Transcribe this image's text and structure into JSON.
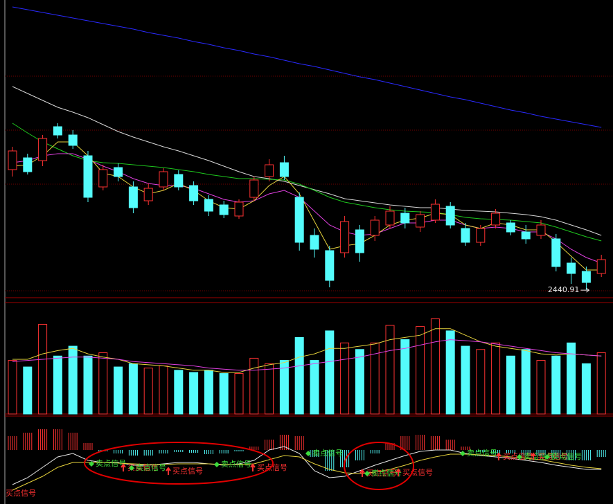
{
  "chart_data": [
    {
      "type": "candlestick",
      "open": [
        2615,
        2632,
        2628,
        2677,
        2665,
        2635,
        2590,
        2618,
        2590,
        2570,
        2590,
        2608,
        2592,
        2572,
        2564,
        2548,
        2575,
        2605,
        2625,
        2575,
        2520,
        2498,
        2495,
        2528,
        2520,
        2535,
        2552,
        2532,
        2542,
        2562,
        2530,
        2510,
        2535,
        2538,
        2525,
        2520,
        2515,
        2480,
        2468,
        2465
      ],
      "high": [
        2648,
        2638,
        2665,
        2682,
        2672,
        2642,
        2622,
        2624,
        2598,
        2595,
        2617,
        2614,
        2598,
        2578,
        2570,
        2572,
        2605,
        2630,
        2635,
        2582,
        2530,
        2505,
        2548,
        2535,
        2548,
        2562,
        2560,
        2555,
        2572,
        2568,
        2538,
        2535,
        2558,
        2542,
        2535,
        2542,
        2522,
        2488,
        2475,
        2492
      ],
      "low": [
        2605,
        2608,
        2620,
        2660,
        2645,
        2568,
        2585,
        2598,
        2552,
        2564,
        2585,
        2585,
        2564,
        2548,
        2545,
        2544,
        2570,
        2598,
        2600,
        2498,
        2488,
        2445,
        2488,
        2482,
        2512,
        2530,
        2530,
        2525,
        2538,
        2530,
        2505,
        2505,
        2530,
        2520,
        2508,
        2515,
        2468,
        2450,
        2440.91,
        2460
      ],
      "close": [
        2642,
        2612,
        2660,
        2665,
        2650,
        2575,
        2615,
        2605,
        2560,
        2588,
        2612,
        2590,
        2570,
        2555,
        2550,
        2568,
        2600,
        2622,
        2605,
        2510,
        2500,
        2455,
        2540,
        2495,
        2542,
        2555,
        2538,
        2550,
        2565,
        2535,
        2510,
        2530,
        2552,
        2525,
        2515,
        2535,
        2475,
        2465,
        2452,
        2485
      ],
      "up_color": "#ff3232",
      "down_color": "#54fcfc",
      "series": [
        {
          "color": "#2a2aff",
          "values": [
            2850,
            2846,
            2842,
            2838,
            2834,
            2830,
            2826,
            2822,
            2818,
            2813,
            2809,
            2805,
            2800,
            2796,
            2791,
            2787,
            2782,
            2778,
            2773,
            2768,
            2764,
            2759,
            2754,
            2749,
            2745,
            2740,
            2735,
            2730,
            2725,
            2720,
            2716,
            2711,
            2706,
            2701,
            2697,
            2692,
            2688,
            2684,
            2680,
            2676
          ]
        },
        {
          "color": "#d8d8d8",
          "values": [
            2735,
            2725,
            2715,
            2705,
            2698,
            2690,
            2680,
            2670,
            2662,
            2655,
            2648,
            2642,
            2635,
            2628,
            2620,
            2612,
            2605,
            2602,
            2598,
            2592,
            2586,
            2580,
            2573,
            2570,
            2567,
            2564,
            2562,
            2560,
            2560,
            2558,
            2556,
            2555,
            2554,
            2552,
            2550,
            2547,
            2542,
            2535,
            2528,
            2520
          ]
        },
        {
          "color": "#1ec81e",
          "values": [
            2682,
            2668,
            2655,
            2645,
            2635,
            2628,
            2625,
            2624,
            2622,
            2620,
            2618,
            2615,
            2612,
            2608,
            2605,
            2602,
            2602,
            2601,
            2600,
            2594,
            2585,
            2575,
            2568,
            2564,
            2560,
            2557,
            2555,
            2554,
            2553,
            2550,
            2546,
            2544,
            2543,
            2542,
            2540,
            2538,
            2532,
            2525,
            2518,
            2512
          ]
        },
        {
          "color": "#e040e0",
          "values": [
            2625,
            2628,
            2635,
            2638,
            2638,
            2630,
            2620,
            2612,
            2602,
            2595,
            2592,
            2592,
            2588,
            2580,
            2572,
            2568,
            2570,
            2580,
            2585,
            2575,
            2555,
            2535,
            2525,
            2520,
            2522,
            2530,
            2538,
            2538,
            2542,
            2542,
            2535,
            2530,
            2532,
            2530,
            2525,
            2525,
            2515,
            2500,
            2488,
            2480
          ]
        },
        {
          "color": "#e6d23c",
          "values": [
            2620,
            2622,
            2635,
            2655,
            2655,
            2635,
            2610,
            2605,
            2590,
            2580,
            2585,
            2595,
            2585,
            2570,
            2560,
            2558,
            2570,
            2592,
            2605,
            2580,
            2540,
            2500,
            2505,
            2508,
            2520,
            2535,
            2542,
            2545,
            2552,
            2550,
            2535,
            2530,
            2538,
            2535,
            2528,
            2528,
            2510,
            2490,
            2470,
            2470
          ]
        }
      ],
      "ylim": [
        2430,
        2860
      ],
      "yticks": [
        2750,
        2672,
        2594,
        2440
      ],
      "grid": true
    },
    {
      "type": "bar",
      "values": [
        49,
        43,
        82,
        53,
        62,
        53,
        56,
        43,
        46,
        42,
        44,
        40,
        38,
        40,
        37,
        37,
        51,
        46,
        49,
        70,
        49,
        76,
        65,
        59,
        65,
        81,
        68,
        80,
        87,
        76,
        62,
        59,
        65,
        53,
        59,
        49,
        53,
        65,
        46,
        56
      ],
      "series": [
        {
          "color": "#e6d23c",
          "values": [
            50,
            50,
            55,
            58,
            60,
            55,
            52,
            50,
            46,
            45,
            44,
            42,
            40,
            40,
            38,
            38,
            42,
            45,
            47,
            52,
            55,
            60,
            60,
            62,
            64,
            68,
            70,
            72,
            78,
            78,
            72,
            66,
            62,
            60,
            58,
            55,
            54,
            55,
            54,
            53
          ]
        },
        {
          "color": "#e040e0",
          "values": [
            48,
            49,
            50,
            51,
            52,
            52,
            51,
            50,
            48,
            47,
            46,
            45,
            44,
            42,
            41,
            40,
            40,
            41,
            42,
            44,
            46,
            48,
            50,
            52,
            55,
            58,
            60,
            63,
            66,
            68,
            67,
            66,
            64,
            62,
            60,
            58,
            56,
            55,
            54,
            53
          ]
        }
      ],
      "ylim": [
        0,
        100
      ]
    },
    {
      "type": "macd",
      "values": [
        20,
        25,
        30,
        30,
        25,
        10,
        -2,
        -5,
        -8,
        -8,
        -5,
        -3,
        -4,
        -6,
        -5,
        -2,
        5,
        15,
        22,
        20,
        -10,
        -30,
        -25,
        -15,
        -5,
        10,
        20,
        22,
        20,
        15,
        5,
        -3,
        -5,
        -5,
        -8,
        -8,
        -12,
        -15,
        -15,
        -10
      ],
      "series": [
        {
          "color": "#e8e8e8",
          "values": [
            -50,
            -40,
            -25,
            -10,
            -5,
            -15,
            -18,
            -18,
            -22,
            -22,
            -20,
            -18,
            -18,
            -20,
            -22,
            -20,
            -15,
            0,
            5,
            -5,
            -30,
            -40,
            -38,
            -30,
            -22,
            -15,
            -8,
            -2,
            0,
            0,
            -5,
            -8,
            -10,
            -12,
            -15,
            -18,
            -22,
            -25,
            -28,
            -28
          ]
        },
        {
          "color": "#e6d23c",
          "values": [
            -58,
            -48,
            -38,
            -25,
            -18,
            -18,
            -18,
            -19,
            -20,
            -21,
            -21,
            -20,
            -20,
            -20,
            -21,
            -21,
            -20,
            -14,
            -8,
            -10,
            -20,
            -28,
            -33,
            -34,
            -32,
            -28,
            -22,
            -15,
            -10,
            -6,
            -6,
            -7,
            -8,
            -10,
            -12,
            -14,
            -18,
            -22,
            -25,
            -27
          ]
        }
      ],
      "ylim": [
        -75,
        50
      ],
      "signals": [
        {
          "text": "卖点信号",
          "color": "#3cdc3c"
        },
        {
          "text": "买点信号",
          "color": "#ff3232"
        },
        {
          "text": "卖点信号",
          "color": "#3cdc3c"
        },
        {
          "text": "买点信号",
          "color": "#ff3232"
        },
        {
          "text": "卖点信号",
          "color": "#3cdc3c"
        },
        {
          "text": "买点信号",
          "color": "#ff3232"
        },
        {
          "text": "卖点信号",
          "color": "#3cdc3c"
        },
        {
          "text": "买点信号",
          "color": "#ff3232"
        },
        {
          "text": "卖点信号",
          "color": "#3cdc3c"
        },
        {
          "text": "买点信号",
          "color": "#ff3232"
        },
        {
          "text": "卖点信号",
          "color": "#3cdc3c"
        },
        {
          "text": "买点信号",
          "color": "#ff3232"
        },
        {
          "text": "卖点信号",
          "color": "#3cdc3c"
        },
        {
          "text": "买点信号",
          "color": "#ff3232"
        },
        {
          "text": "卖点信号",
          "color": "#3cdc3c"
        },
        {
          "text": "买点信号",
          "color": "#ff3232"
        }
      ]
    }
  ]
}
